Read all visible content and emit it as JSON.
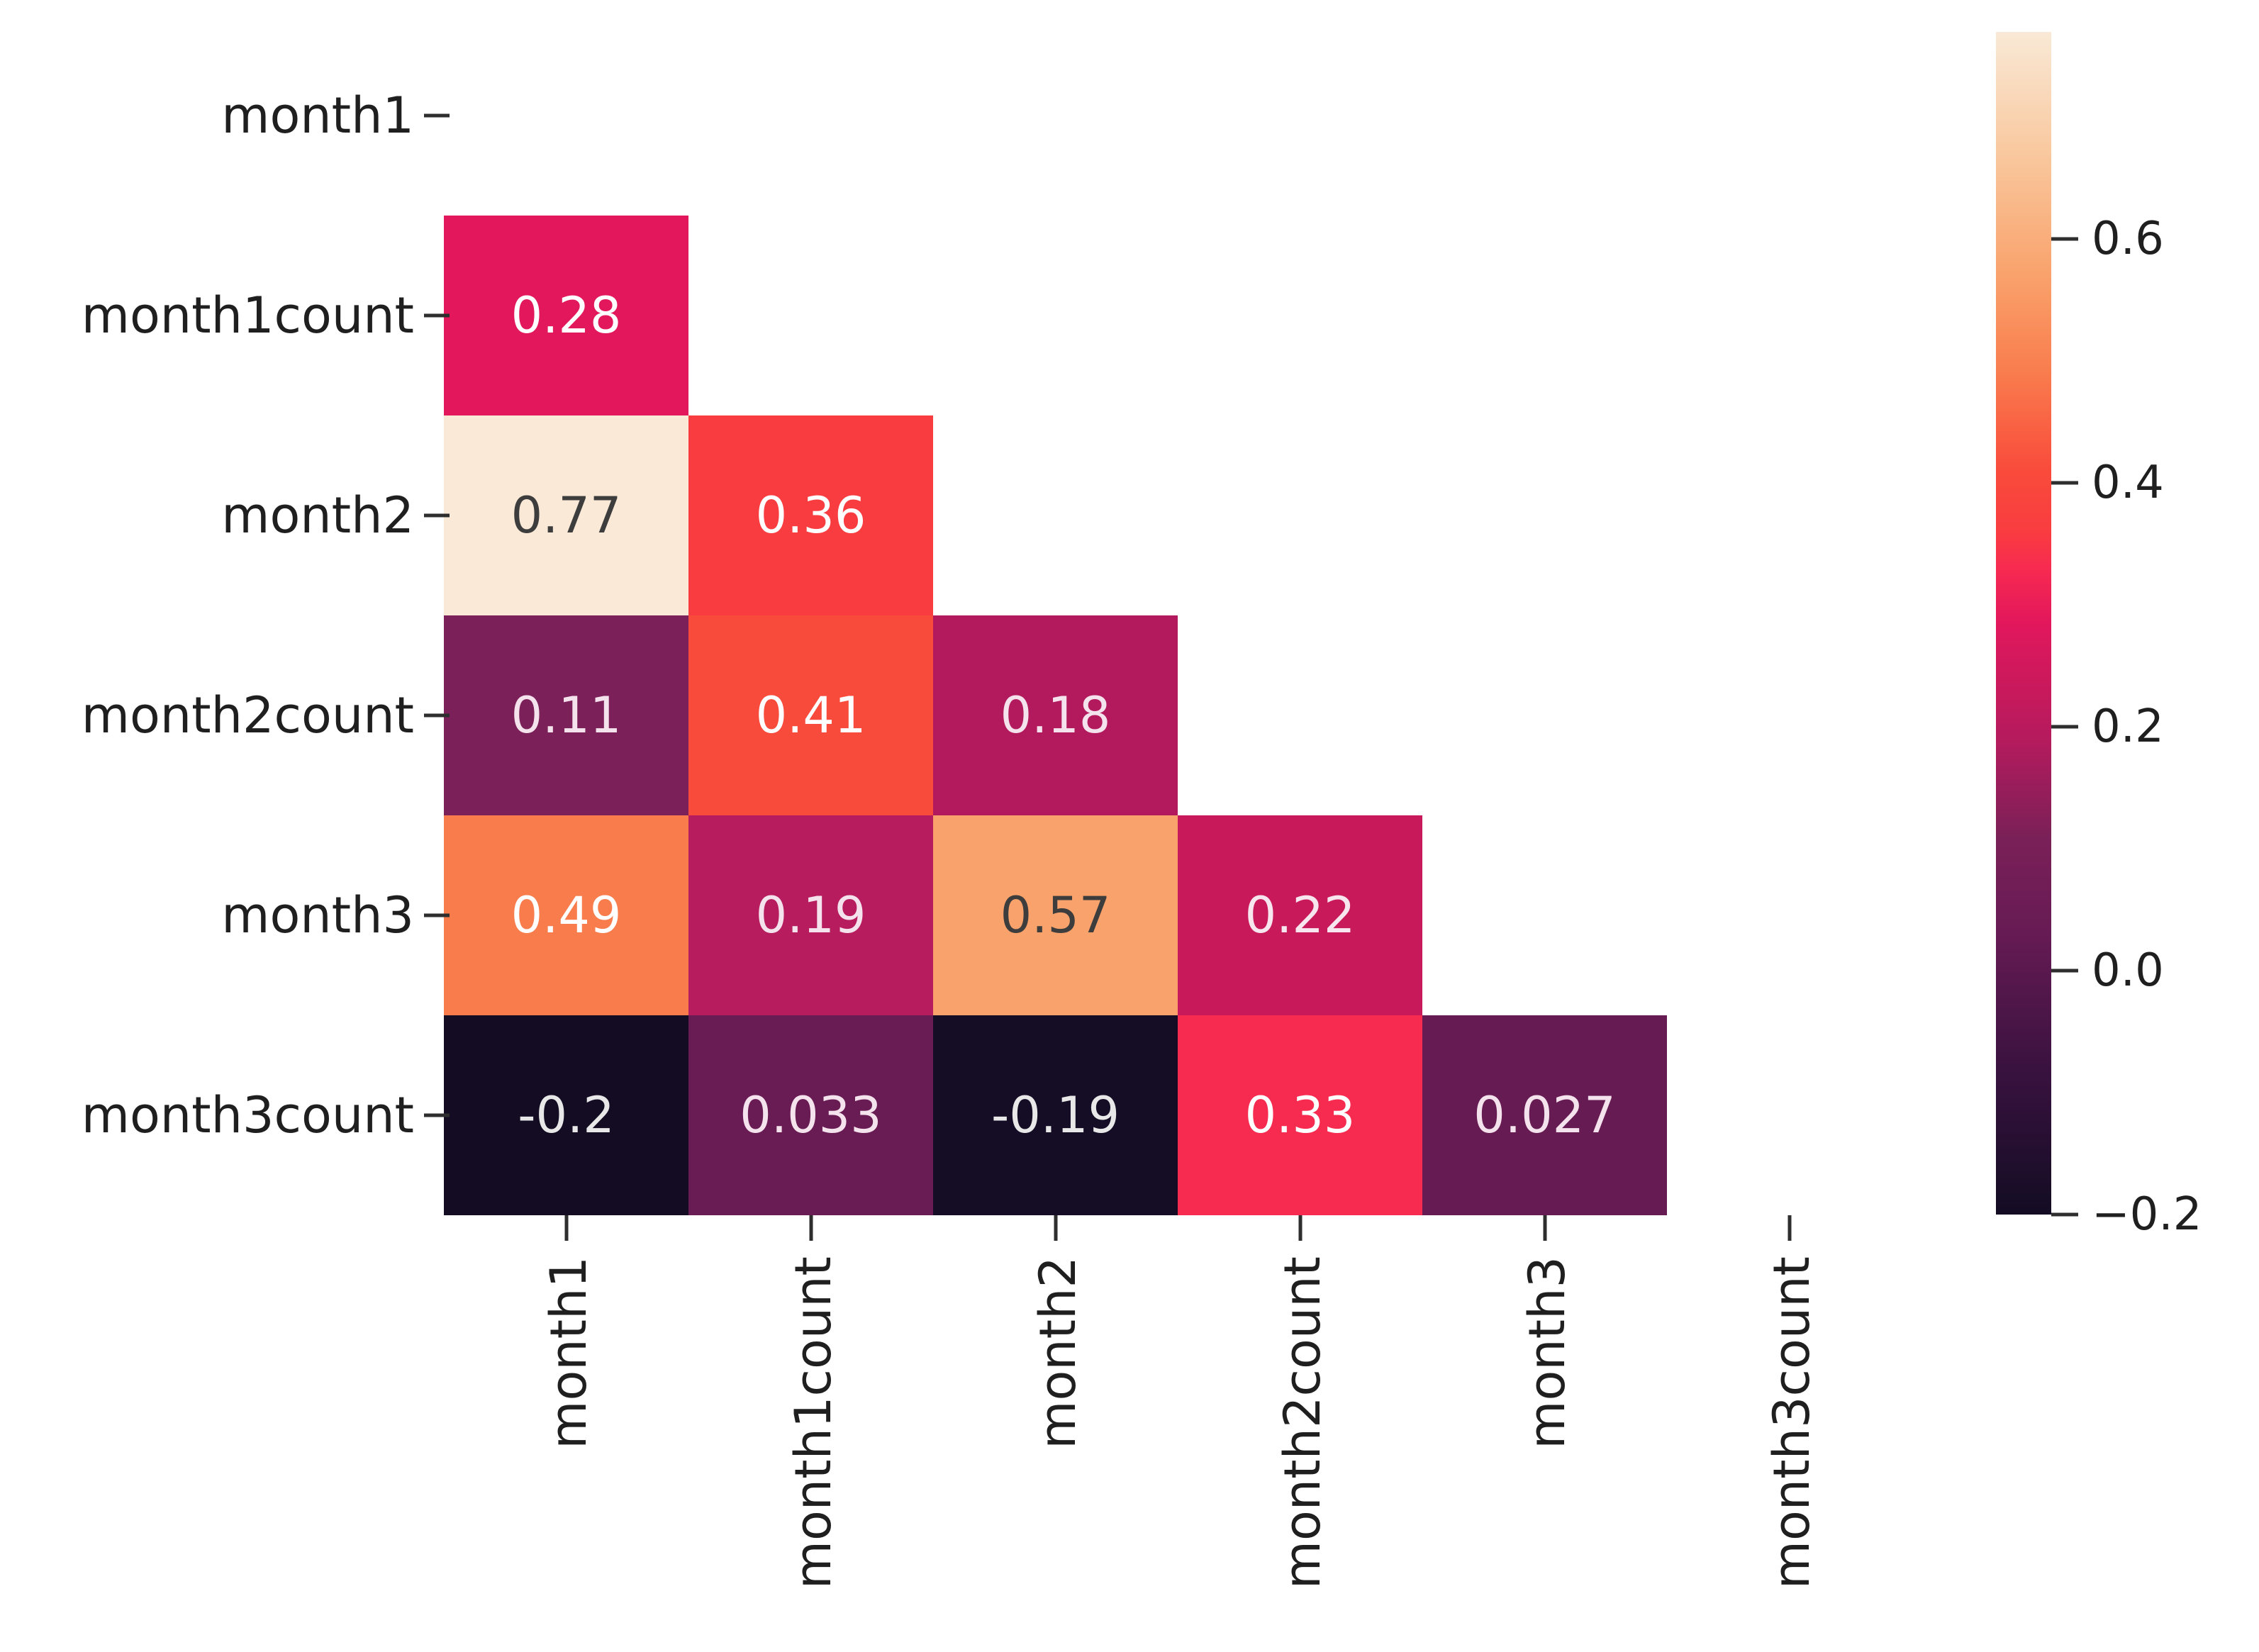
{
  "chart_data": {
    "type": "heatmap",
    "title": "",
    "colormap": "rocket",
    "mask": "upper triangle and diagonal hidden",
    "categories": [
      "month1",
      "month1count",
      "month2",
      "month2count",
      "month3",
      "month3count"
    ],
    "x_tick_labels": [
      "month1",
      "month1count",
      "month2",
      "month2count",
      "month3",
      "month3count"
    ],
    "y_tick_labels": [
      "month1",
      "month1count",
      "month2",
      "month2count",
      "month3",
      "month3count"
    ],
    "matrix": [
      [
        null,
        null,
        null,
        null,
        null,
        null
      ],
      [
        0.28,
        null,
        null,
        null,
        null,
        null
      ],
      [
        0.77,
        0.36,
        null,
        null,
        null,
        null
      ],
      [
        0.11,
        0.41,
        0.18,
        null,
        null,
        null
      ],
      [
        0.49,
        0.19,
        0.57,
        0.22,
        null,
        null
      ],
      [
        -0.2,
        0.033,
        -0.19,
        0.33,
        0.027,
        null
      ]
    ],
    "cells": [
      {
        "row": 1,
        "col": 0,
        "value": 0.28,
        "label": "0.28",
        "color": "#E2175C",
        "text_color": "#FFFFFF"
      },
      {
        "row": 2,
        "col": 0,
        "value": 0.77,
        "label": "0.77",
        "color": "#F9E9D6",
        "text_color": "#3D3D3D"
      },
      {
        "row": 2,
        "col": 1,
        "value": 0.36,
        "label": "0.36",
        "color": "#F93C40",
        "text_color": "#FFFFFF"
      },
      {
        "row": 3,
        "col": 0,
        "value": 0.11,
        "label": "0.11",
        "color": "#7B2058",
        "text_color": "#F4E3EC"
      },
      {
        "row": 3,
        "col": 1,
        "value": 0.41,
        "label": "0.41",
        "color": "#F94B3B",
        "text_color": "#FFFFFF"
      },
      {
        "row": 3,
        "col": 2,
        "value": 0.18,
        "label": "0.18",
        "color": "#B31A5D",
        "text_color": "#F4E3EC"
      },
      {
        "row": 4,
        "col": 0,
        "value": 0.49,
        "label": "0.49",
        "color": "#F97C4D",
        "text_color": "#FFFFFF"
      },
      {
        "row": 4,
        "col": 1,
        "value": 0.19,
        "label": "0.19",
        "color": "#B61C5E",
        "text_color": "#F4E3EC"
      },
      {
        "row": 4,
        "col": 2,
        "value": 0.57,
        "label": "0.57",
        "color": "#F9A26B",
        "text_color": "#3D3D3D"
      },
      {
        "row": 4,
        "col": 3,
        "value": 0.22,
        "label": "0.22",
        "color": "#C8195B",
        "text_color": "#F7E6EE"
      },
      {
        "row": 5,
        "col": 0,
        "value": -0.2,
        "label": "-0.2",
        "color": "#130C23",
        "text_color": "#E8E8E8"
      },
      {
        "row": 5,
        "col": 1,
        "value": 0.033,
        "label": "0.033",
        "color": "#691B54",
        "text_color": "#F4E3EC"
      },
      {
        "row": 5,
        "col": 2,
        "value": -0.19,
        "label": "-0.19",
        "color": "#150D25",
        "text_color": "#E8E8E8"
      },
      {
        "row": 5,
        "col": 3,
        "value": 0.33,
        "label": "0.33",
        "color": "#F72A50",
        "text_color": "#FFFFFF"
      },
      {
        "row": 5,
        "col": 4,
        "value": 0.027,
        "label": "0.027",
        "color": "#671B53",
        "text_color": "#F4E3EC"
      }
    ],
    "colorbar": {
      "vmin": -0.2,
      "vmax": 0.77,
      "ticks": [
        {
          "value": 0.6,
          "label": "0.6"
        },
        {
          "value": 0.4,
          "label": "0.4"
        },
        {
          "value": 0.2,
          "label": "0.2"
        },
        {
          "value": 0.0,
          "label": "0.0"
        },
        {
          "value": -0.2,
          "label": "−0.2"
        }
      ],
      "gradient_stops": [
        {
          "t": 0.0,
          "color": "#130C23"
        },
        {
          "t": 0.125,
          "color": "#3A1240"
        },
        {
          "t": 0.24,
          "color": "#671B54"
        },
        {
          "t": 0.32,
          "color": "#7B2058"
        },
        {
          "t": 0.4,
          "color": "#B41B5D"
        },
        {
          "t": 0.5,
          "color": "#E2175C"
        },
        {
          "t": 0.546,
          "color": "#F72A50"
        },
        {
          "t": 0.577,
          "color": "#F93C40"
        },
        {
          "t": 0.629,
          "color": "#F94B3B"
        },
        {
          "t": 0.711,
          "color": "#F97C4D"
        },
        {
          "t": 0.794,
          "color": "#F9A26B"
        },
        {
          "t": 0.9,
          "color": "#F9C9A0"
        },
        {
          "t": 1.0,
          "color": "#F9E9D6"
        }
      ]
    }
  }
}
